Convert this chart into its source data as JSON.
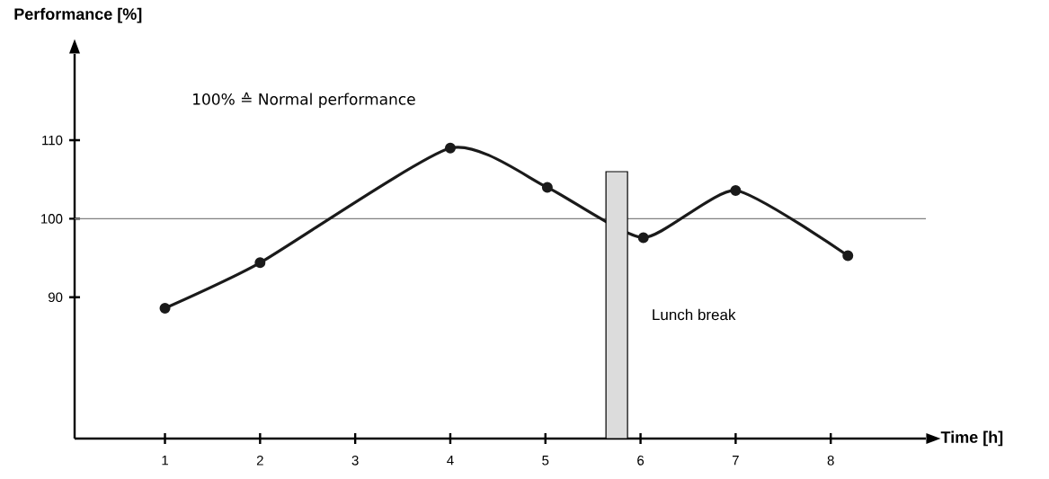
{
  "chart_data": {
    "type": "line",
    "xlabel": "Time [h]",
    "ylabel": "Performance [%]",
    "annotations": [
      "100% ≙ Normal performance",
      "Lunch break"
    ],
    "xlim": [
      0.05,
      9.0
    ],
    "ylim": [
      72,
      121
    ],
    "xticks": [
      1,
      2,
      3,
      4,
      5,
      6,
      7,
      8
    ],
    "yticks": [
      90,
      100,
      110
    ],
    "marker": "circle",
    "line_style": "solid",
    "ref_lines": [
      {
        "axis": "y",
        "value": 100,
        "color": "#808080"
      }
    ],
    "series": [
      {
        "x": [
          1,
          2,
          4,
          5.02,
          6.03,
          7,
          8.18
        ],
        "values": [
          88.6,
          94.4,
          109.0,
          104.0,
          97.6,
          103.6,
          95.3
        ],
        "color": "#1a1a1a"
      },
      {
        "type": "bar",
        "x": [
          5.75
        ],
        "values": [
          106
        ],
        "color": "#dcdcdc"
      }
    ]
  }
}
